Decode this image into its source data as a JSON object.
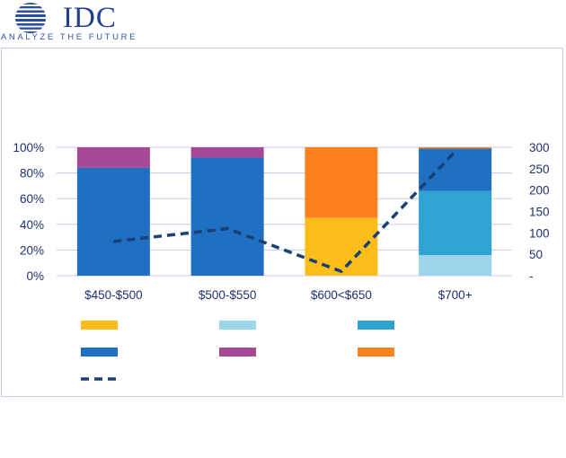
{
  "logo": {
    "text": "IDC",
    "tagline": "ANALYZE THE FUTURE"
  },
  "colors": {
    "yellow": "#fbbd19",
    "light_blue": "#9dd6ec",
    "cyan": "#2fa3d1",
    "blue": "#1f6fc2",
    "purple": "#a64894",
    "orange": "#fb821f",
    "line": "#1a3f73",
    "grid": "#c8c8ea"
  },
  "chart_data": {
    "type": "bar",
    "stacked": true,
    "categories": [
      "$450-$500",
      "$500-$550",
      "$600<$650",
      "$700+"
    ],
    "series": [
      {
        "name": "",
        "color_key": "light_blue",
        "values": [
          0,
          0,
          0,
          0.16
        ]
      },
      {
        "name": "",
        "color_key": "cyan",
        "values": [
          0,
          0,
          0,
          0.5
        ]
      },
      {
        "name": "",
        "color_key": "yellow",
        "values": [
          0,
          0,
          0.45,
          0
        ]
      },
      {
        "name": "",
        "color_key": "blue",
        "values": [
          0.84,
          0.92,
          0,
          0.33
        ]
      },
      {
        "name": "",
        "color_key": "purple",
        "values": [
          0.16,
          0.08,
          0,
          0
        ]
      },
      {
        "name": "",
        "color_key": "orange",
        "values": [
          0,
          0,
          0.55,
          0.01
        ]
      }
    ],
    "line_series": {
      "name": "",
      "color_key": "line",
      "axis": "right",
      "values": [
        80,
        110,
        10,
        290
      ]
    },
    "y_left": {
      "min": 0,
      "max": 1,
      "ticks": [
        "0%",
        "20%",
        "40%",
        "60%",
        "80%",
        "100%"
      ]
    },
    "y_right": {
      "min": 0,
      "max": 300,
      "ticks": [
        "-",
        "50",
        "100",
        "150",
        "200",
        "250",
        "300"
      ]
    },
    "legend": [
      {
        "color_key": "yellow",
        "type": "swatch",
        "label": ""
      },
      {
        "color_key": "light_blue",
        "type": "swatch",
        "label": ""
      },
      {
        "color_key": "cyan",
        "type": "swatch",
        "label": ""
      },
      {
        "color_key": "blue",
        "type": "swatch",
        "label": ""
      },
      {
        "color_key": "purple",
        "type": "swatch",
        "label": ""
      },
      {
        "color_key": "orange",
        "type": "swatch",
        "label": ""
      },
      {
        "color_key": "line",
        "type": "dash",
        "label": ""
      }
    ]
  }
}
